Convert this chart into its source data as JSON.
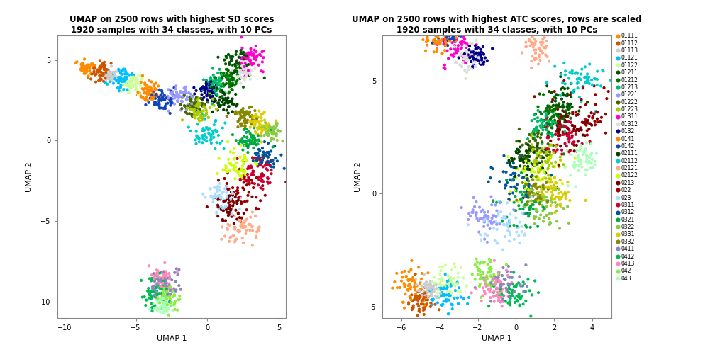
{
  "title1": "UMAP on 2500 rows with highest SD scores\n1920 samples with 34 classes, with 10 PCs",
  "title2": "UMAP on 2500 rows with highest ATC scores, rows are scaled\n1920 samples with 34 classes, with 10 PCs",
  "xlabel": "UMAP 1",
  "ylabel": "UMAP 2",
  "classes": [
    "01111",
    "01112",
    "01113",
    "01121",
    "01122",
    "01211",
    "01212",
    "01213",
    "01221",
    "01222",
    "01223",
    "01311",
    "01312",
    "0132",
    "0141",
    "0142",
    "02111",
    "02112",
    "02121",
    "02122",
    "0213",
    "022",
    "023",
    "0311",
    "0312",
    "0321",
    "0322",
    "0331",
    "0332",
    "0411",
    "0412",
    "0413",
    "042",
    "043"
  ],
  "colors_map": {
    "01111": "#FF8C00",
    "01112": "#CC5500",
    "01113": "#CCCCCC",
    "01121": "#00BFFF",
    "01122": "#CCFF99",
    "01211": "#005500",
    "01212": "#007700",
    "01213": "#00BB66",
    "01221": "#9999FF",
    "01222": "#446600",
    "01223": "#AACC00",
    "01311": "#FF00CC",
    "01312": "#DDDDDD",
    "0132": "#000088",
    "0141": "#FF8800",
    "0142": "#1144BB",
    "02111": "#004400",
    "02112": "#00CCCC",
    "02121": "#FFAA88",
    "02122": "#CCFF00",
    "0213": "#770000",
    "022": "#990000",
    "023": "#AADDFF",
    "0311": "#CC0033",
    "0312": "#005599",
    "0321": "#00AA44",
    "0322": "#88CC44",
    "0331": "#DDCC00",
    "0332": "#888800",
    "0411": "#8888BB",
    "0412": "#00BB55",
    "0413": "#FF88BB",
    "042": "#88EE44",
    "043": "#AAFFBB"
  },
  "xlim1": [
    -10.5,
    5.5
  ],
  "ylim1": [
    -11,
    6.5
  ],
  "xticks1": [
    -10,
    -5,
    0,
    5
  ],
  "yticks1": [
    -10,
    -5,
    0,
    5
  ],
  "xlim2": [
    -7,
    5
  ],
  "ylim2": [
    -5.5,
    7
  ],
  "xticks2": [
    -6,
    -4,
    -2,
    0,
    2,
    4
  ],
  "yticks2": [
    -5,
    0,
    5
  ],
  "background": "#FFFFFF",
  "point_size": 9,
  "alpha": 1.0,
  "legend_fontsize": 5.5,
  "title_fontsize": 8.5,
  "axis_fontsize": 8,
  "tick_fontsize": 7
}
